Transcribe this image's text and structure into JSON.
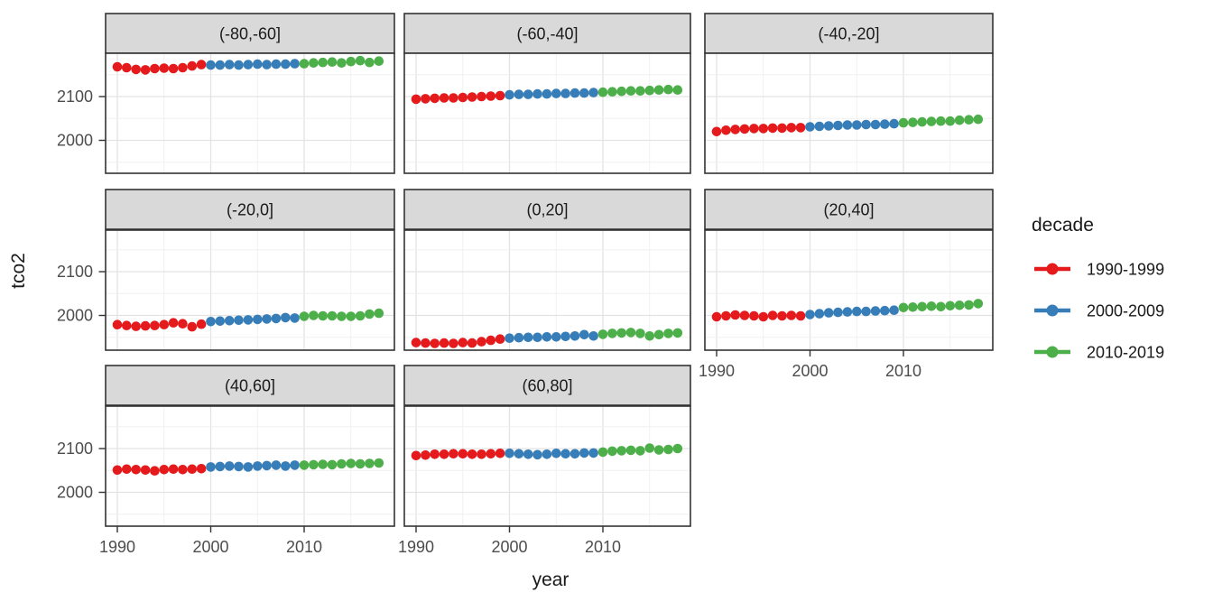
{
  "figure": {
    "kind": "faceted scatter plot (ggplot2 style)",
    "background": "#ffffff"
  },
  "axes": {
    "x_title": "year",
    "y_title": "tco2",
    "x_tick_labels": [
      "1990",
      "2000",
      "2010"
    ],
    "y_tick_labels": [
      "2100",
      "2000"
    ]
  },
  "legend": {
    "title": "decade",
    "entries": [
      {
        "label": "1990-1999",
        "color": "#E41A1C"
      },
      {
        "label": "2000-2009",
        "color": "#377EB8"
      },
      {
        "label": "2010-2019",
        "color": "#4DAF4A"
      }
    ]
  },
  "chart_data": {
    "type": "scatter",
    "title": "",
    "xlabel": "year",
    "ylabel": "tco2",
    "legend_title": "decade",
    "legend_position": "right",
    "grid": "major and minor, light gray on white panels",
    "x": [
      1990,
      1991,
      1992,
      1993,
      1994,
      1995,
      1996,
      1997,
      1998,
      1999,
      2000,
      2001,
      2002,
      2003,
      2004,
      2005,
      2006,
      2007,
      2008,
      2009,
      2010,
      2011,
      2012,
      2013,
      2014,
      2015,
      2016,
      2017,
      2018
    ],
    "x_ticks": [
      1990,
      2000,
      2010
    ],
    "y_ticks": [
      2000,
      2100
    ],
    "xlim": [
      1988.7,
      2019.7
    ],
    "ylim": [
      1923,
      2200
    ],
    "series_by": "decade",
    "decades": [
      {
        "name": "1990-1999",
        "color": "#E41A1C",
        "start": 1990,
        "end": 1999
      },
      {
        "name": "2000-2009",
        "color": "#377EB8",
        "start": 2000,
        "end": 2009
      },
      {
        "name": "2010-2019",
        "color": "#4DAF4A",
        "start": 2010,
        "end": 2019
      }
    ],
    "facets": [
      {
        "label": "(-80,-60]",
        "values": [
          2168,
          2166,
          2162,
          2161,
          2164,
          2165,
          2164,
          2166,
          2170,
          2173,
          2172,
          2172,
          2173,
          2172,
          2173,
          2174,
          2173,
          2174,
          2174,
          2175,
          2175,
          2177,
          2178,
          2179,
          2177,
          2180,
          2182,
          2178,
          2181
        ]
      },
      {
        "label": "(-60,-40]",
        "values": [
          2094,
          2095,
          2096,
          2097,
          2097,
          2098,
          2099,
          2100,
          2101,
          2102,
          2104,
          2105,
          2105,
          2106,
          2106,
          2107,
          2107,
          2108,
          2108,
          2109,
          2110,
          2111,
          2112,
          2113,
          2113,
          2114,
          2115,
          2116,
          2115
        ]
      },
      {
        "label": "(-40,-20]",
        "values": [
          2020,
          2023,
          2025,
          2026,
          2027,
          2027,
          2028,
          2028,
          2029,
          2029,
          2031,
          2032,
          2033,
          2034,
          2035,
          2035,
          2036,
          2036,
          2037,
          2038,
          2040,
          2041,
          2042,
          2043,
          2044,
          2044,
          2046,
          2047,
          2048
        ]
      },
      {
        "label": "(-20,0]",
        "values": [
          1979,
          1977,
          1975,
          1976,
          1977,
          1979,
          1983,
          1981,
          1974,
          1980,
          1986,
          1987,
          1988,
          1989,
          1990,
          1991,
          1992,
          1993,
          1995,
          1994,
          1998,
          2000,
          1999,
          1999,
          1998,
          1998,
          1999,
          2003,
          2005
        ]
      },
      {
        "label": "(0,20]",
        "values": [
          1938,
          1937,
          1936,
          1937,
          1936,
          1938,
          1937,
          1940,
          1943,
          1946,
          1948,
          1949,
          1950,
          1950,
          1951,
          1951,
          1952,
          1953,
          1956,
          1953,
          1957,
          1959,
          1960,
          1961,
          1959,
          1953,
          1956,
          1959,
          1960
        ]
      },
      {
        "label": "(20,40]",
        "values": [
          1997,
          1999,
          2001,
          2000,
          1999,
          1997,
          2000,
          1999,
          2000,
          1999,
          2002,
          2004,
          2006,
          2007,
          2008,
          2009,
          2009,
          2010,
          2011,
          2012,
          2018,
          2019,
          2020,
          2021,
          2020,
          2022,
          2023,
          2024,
          2027
        ]
      },
      {
        "label": "(40,60]",
        "values": [
          2051,
          2053,
          2052,
          2051,
          2049,
          2052,
          2053,
          2052,
          2053,
          2054,
          2058,
          2059,
          2060,
          2059,
          2058,
          2060,
          2061,
          2062,
          2060,
          2062,
          2062,
          2063,
          2064,
          2063,
          2065,
          2066,
          2065,
          2066,
          2067
        ]
      },
      {
        "label": "(60,80]",
        "values": [
          2084,
          2085,
          2087,
          2087,
          2088,
          2088,
          2087,
          2087,
          2088,
          2089,
          2089,
          2088,
          2087,
          2086,
          2087,
          2089,
          2088,
          2088,
          2090,
          2090,
          2092,
          2094,
          2095,
          2096,
          2095,
          2101,
          2097,
          2098,
          2100
        ]
      }
    ]
  }
}
